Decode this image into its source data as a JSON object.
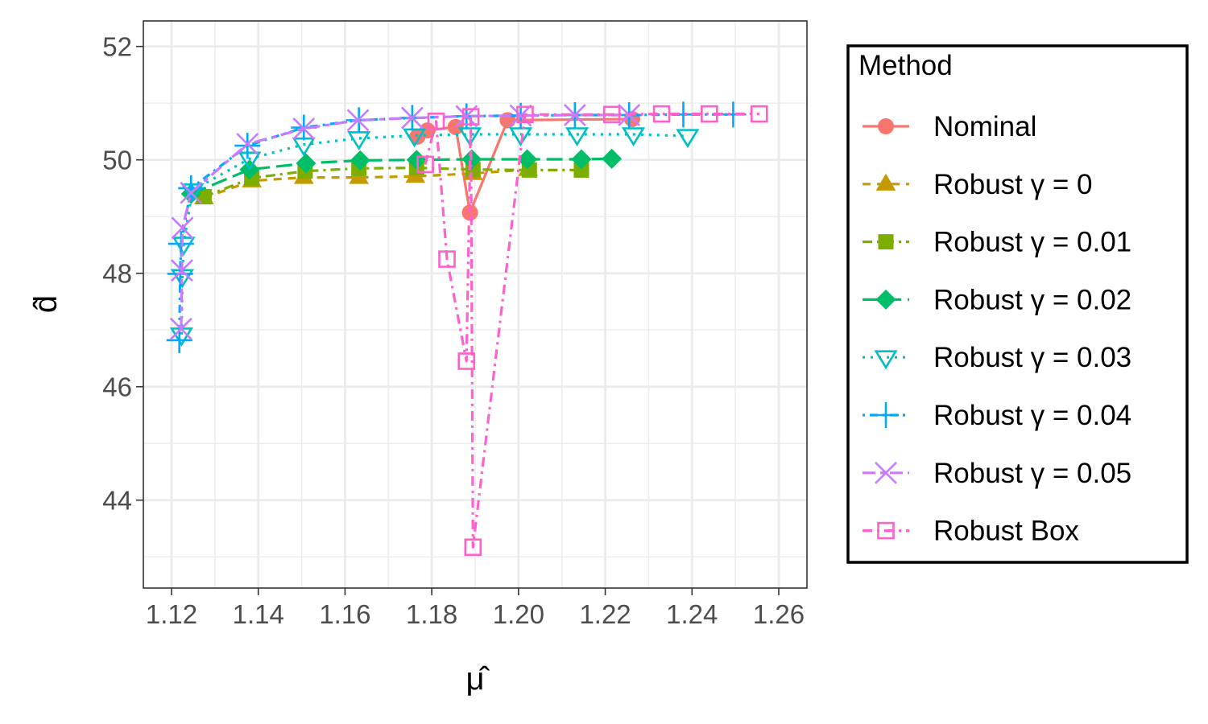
{
  "chart_data": {
    "type": "line",
    "title": "",
    "xlabel": "μ̂",
    "ylabel": "d̂",
    "xlim": [
      1.1135,
      1.2665
    ],
    "ylim": [
      42.45,
      52.45
    ],
    "x_ticks": [
      1.12,
      1.14,
      1.16,
      1.18,
      1.2,
      1.22,
      1.24,
      1.26
    ],
    "x_tick_labels": [
      "1.12",
      "1.14",
      "1.16",
      "1.18",
      "1.20",
      "1.22",
      "1.24",
      "1.26"
    ],
    "y_ticks": [
      44,
      46,
      48,
      50,
      52
    ],
    "y_tick_labels": [
      "44",
      "46",
      "48",
      "50",
      "52"
    ],
    "grid": true,
    "legend": {
      "title": "Method",
      "position": "right"
    },
    "series": [
      {
        "name": "Nominal",
        "color": "#F8766D",
        "marker": "circle-filled",
        "dash": "solid",
        "points": [
          [
            1.1767,
            50.41
          ],
          [
            1.179,
            50.52
          ],
          [
            1.1855,
            50.58
          ],
          [
            1.1888,
            49.07
          ],
          [
            1.1975,
            50.7
          ],
          [
            1.2262,
            50.72
          ]
        ]
      },
      {
        "name": "Robust γ = 0",
        "color": "#C49A00",
        "marker": "triangle-filled",
        "dash": "dashed",
        "points": [
          [
            1.1275,
            49.33
          ],
          [
            1.1385,
            49.63
          ],
          [
            1.1505,
            49.69
          ],
          [
            1.1632,
            49.69
          ],
          [
            1.1762,
            49.71
          ],
          [
            1.1895,
            49.76
          ],
          [
            1.2022,
            49.83
          ]
        ]
      },
      {
        "name": "Robust γ = 0.01",
        "color": "#7CAE00",
        "marker": "square-filled",
        "dash": "dashdot",
        "points": [
          [
            1.1275,
            49.35
          ],
          [
            1.1385,
            49.68
          ],
          [
            1.1508,
            49.8
          ],
          [
            1.1632,
            49.85
          ],
          [
            1.1765,
            49.86
          ],
          [
            1.1895,
            49.83
          ],
          [
            1.2025,
            49.82
          ],
          [
            1.2145,
            49.82
          ]
        ]
      },
      {
        "name": "Robust γ = 0.02",
        "color": "#00BE67",
        "marker": "diamond-filled",
        "dash": "longdash",
        "points": [
          [
            1.1245,
            49.4
          ],
          [
            1.138,
            49.83
          ],
          [
            1.151,
            49.94
          ],
          [
            1.1635,
            49.99
          ],
          [
            1.1765,
            50.0
          ],
          [
            1.1892,
            50.01
          ],
          [
            1.202,
            50.01
          ],
          [
            1.2145,
            50.01
          ],
          [
            1.2215,
            50.02
          ]
        ]
      },
      {
        "name": "Robust γ = 0.03",
        "color": "#00BFC4",
        "marker": "triangle-down-open",
        "dash": "dotted",
        "points": [
          [
            1.1223,
            46.92
          ],
          [
            1.1225,
            47.95
          ],
          [
            1.1228,
            48.52
          ],
          [
            1.1248,
            49.46
          ],
          [
            1.138,
            50.02
          ],
          [
            1.1505,
            50.27
          ],
          [
            1.1632,
            50.38
          ],
          [
            1.176,
            50.43
          ],
          [
            1.1888,
            50.45
          ],
          [
            1.2005,
            50.45
          ],
          [
            1.2135,
            50.45
          ],
          [
            1.2265,
            50.45
          ],
          [
            1.239,
            50.42
          ]
        ]
      },
      {
        "name": "Robust γ = 0.04",
        "color": "#00A9FF",
        "marker": "plus",
        "dash": "dotdash",
        "points": [
          [
            1.1218,
            46.82
          ],
          [
            1.122,
            47.99
          ],
          [
            1.1222,
            48.52
          ],
          [
            1.1245,
            49.5
          ],
          [
            1.1375,
            50.25
          ],
          [
            1.1505,
            50.57
          ],
          [
            1.1632,
            50.7
          ],
          [
            1.1755,
            50.74
          ],
          [
            1.188,
            50.77
          ],
          [
            1.2005,
            50.78
          ],
          [
            1.213,
            50.79
          ],
          [
            1.2255,
            50.79
          ],
          [
            1.238,
            50.8
          ],
          [
            1.2495,
            50.8
          ]
        ]
      },
      {
        "name": "Robust γ = 0.05",
        "color": "#C77CFF",
        "marker": "x",
        "dash": "twodash",
        "points": [
          [
            1.1222,
            47.02
          ],
          [
            1.1224,
            48.05
          ],
          [
            1.1225,
            48.8
          ],
          [
            1.1245,
            49.42
          ],
          [
            1.1375,
            50.28
          ],
          [
            1.1505,
            50.55
          ],
          [
            1.163,
            50.7
          ],
          [
            1.1755,
            50.74
          ],
          [
            1.188,
            50.77
          ],
          [
            1.2005,
            50.78
          ],
          [
            1.213,
            50.79
          ],
          [
            1.2255,
            50.79
          ]
        ]
      },
      {
        "name": "Robust Box",
        "color": "#FF61CC",
        "marker": "square-open",
        "dash": "dashdot",
        "points": [
          [
            1.1785,
            49.92
          ],
          [
            1.181,
            50.68
          ],
          [
            1.1835,
            48.25
          ],
          [
            1.188,
            46.45
          ],
          [
            1.189,
            50.76
          ],
          [
            1.1895,
            43.17
          ],
          [
            1.2015,
            50.8
          ],
          [
            1.2215,
            50.8
          ],
          [
            1.233,
            50.81
          ],
          [
            1.244,
            50.81
          ],
          [
            1.2555,
            50.81
          ]
        ]
      }
    ]
  }
}
